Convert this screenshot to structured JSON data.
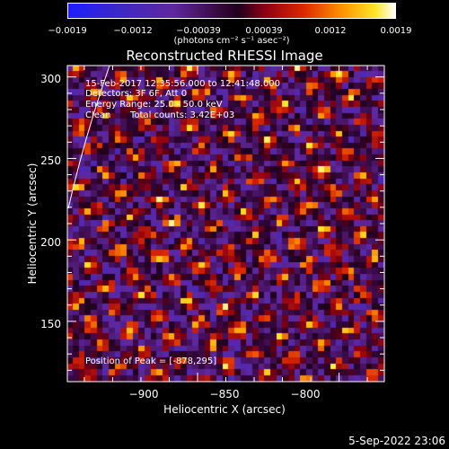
{
  "chart_data": {
    "type": "heatmap",
    "title": "Reconstructed RHESSI Image",
    "xlabel": "Heliocentric X (arcsec)",
    "ylabel": "Heliocentric Y (arcsec)",
    "xlim": [
      -946,
      -834
    ],
    "ylim": [
      113,
      307
    ],
    "xticks": [
      "−900",
      "−850",
      "−800"
    ],
    "xtick_values": [
      -900,
      -850,
      -800
    ],
    "yticks": [
      "300",
      "250",
      "200",
      "150"
    ],
    "ytick_values": [
      300,
      250,
      200,
      150
    ],
    "colorbar": {
      "ticks": [
        "−0.0019",
        "−0.0012",
        "−0.00039",
        "0.00039",
        "0.0012",
        "0.0019"
      ],
      "unit": "(photons cm⁻² s⁻¹ asec⁻²)",
      "range": [
        -0.0019,
        0.0019
      ]
    },
    "annotations": {
      "time_range": "15-Feb-2017 12:35:56.000 to 12:41:48.000",
      "detectors": "Detectors: 3F 6F, Att 0",
      "energy_range": "Energy Range: 25.0 - 50.0 keV",
      "method": "Clean",
      "total_counts": "Total counts: 3.42E+03",
      "peak_position": "Position of Peak = [-878,295]"
    },
    "peak": {
      "x": -878,
      "y": 295
    },
    "grid": false
  },
  "footer": {
    "date": "5-Sep-2022 23:06"
  },
  "colors": {
    "background": "#000000",
    "text": "#ffffff"
  }
}
